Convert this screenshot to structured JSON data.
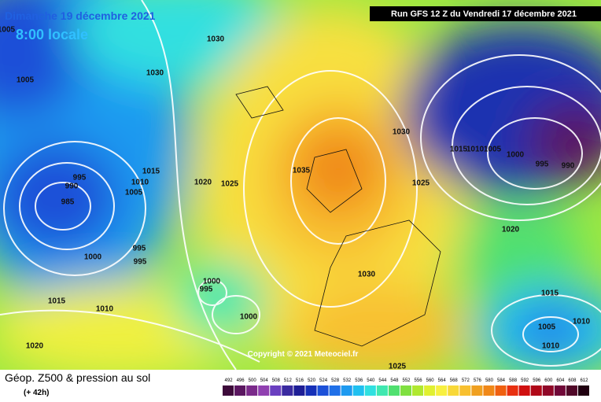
{
  "header": {
    "date": "Dimanche 19 décembre 2021",
    "time": "8:00 locale",
    "run": "Run GFS 12 Z du Vendredi 17 décembre 2021"
  },
  "footer": {
    "title": "Géop. Z500 & pression au sol",
    "lead": "(+ 42h)",
    "copyright": "Copyright © 2021 Meteociel.fr"
  },
  "isobars": [
    1005,
    1030,
    1030,
    1005,
    995,
    990,
    985,
    1015,
    1010,
    1005,
    1020,
    1025,
    995,
    995,
    1000,
    1000,
    995,
    1015,
    1010,
    1000,
    1020,
    1035,
    1030,
    1025,
    1030,
    1015,
    1010,
    1005,
    1000,
    995,
    990,
    1020,
    1015,
    1010,
    1005,
    1010,
    1025
  ],
  "legend": {
    "scale": [
      492,
      496,
      500,
      504,
      508,
      512,
      516,
      520,
      524,
      528,
      532,
      536,
      540,
      544,
      548,
      552,
      556,
      560,
      564,
      568,
      572,
      576,
      580,
      584,
      588,
      592,
      596,
      600,
      604,
      608,
      612
    ],
    "colors": [
      "#3d0a3a",
      "#5a1660",
      "#7a2a8a",
      "#9040b0",
      "#6a3fc0",
      "#3a2aa0",
      "#1e1e96",
      "#1630b8",
      "#1c50d8",
      "#2070e8",
      "#1e9af0",
      "#20c0f0",
      "#30e0e0",
      "#40e8b0",
      "#50e070",
      "#80e040",
      "#b0e830",
      "#e0f030",
      "#f8f040",
      "#f8d838",
      "#f8c030",
      "#f0a020",
      "#f08818",
      "#f06010",
      "#e83010",
      "#d01010",
      "#b00818",
      "#900828",
      "#700838",
      "#500828",
      "#200010"
    ]
  }
}
